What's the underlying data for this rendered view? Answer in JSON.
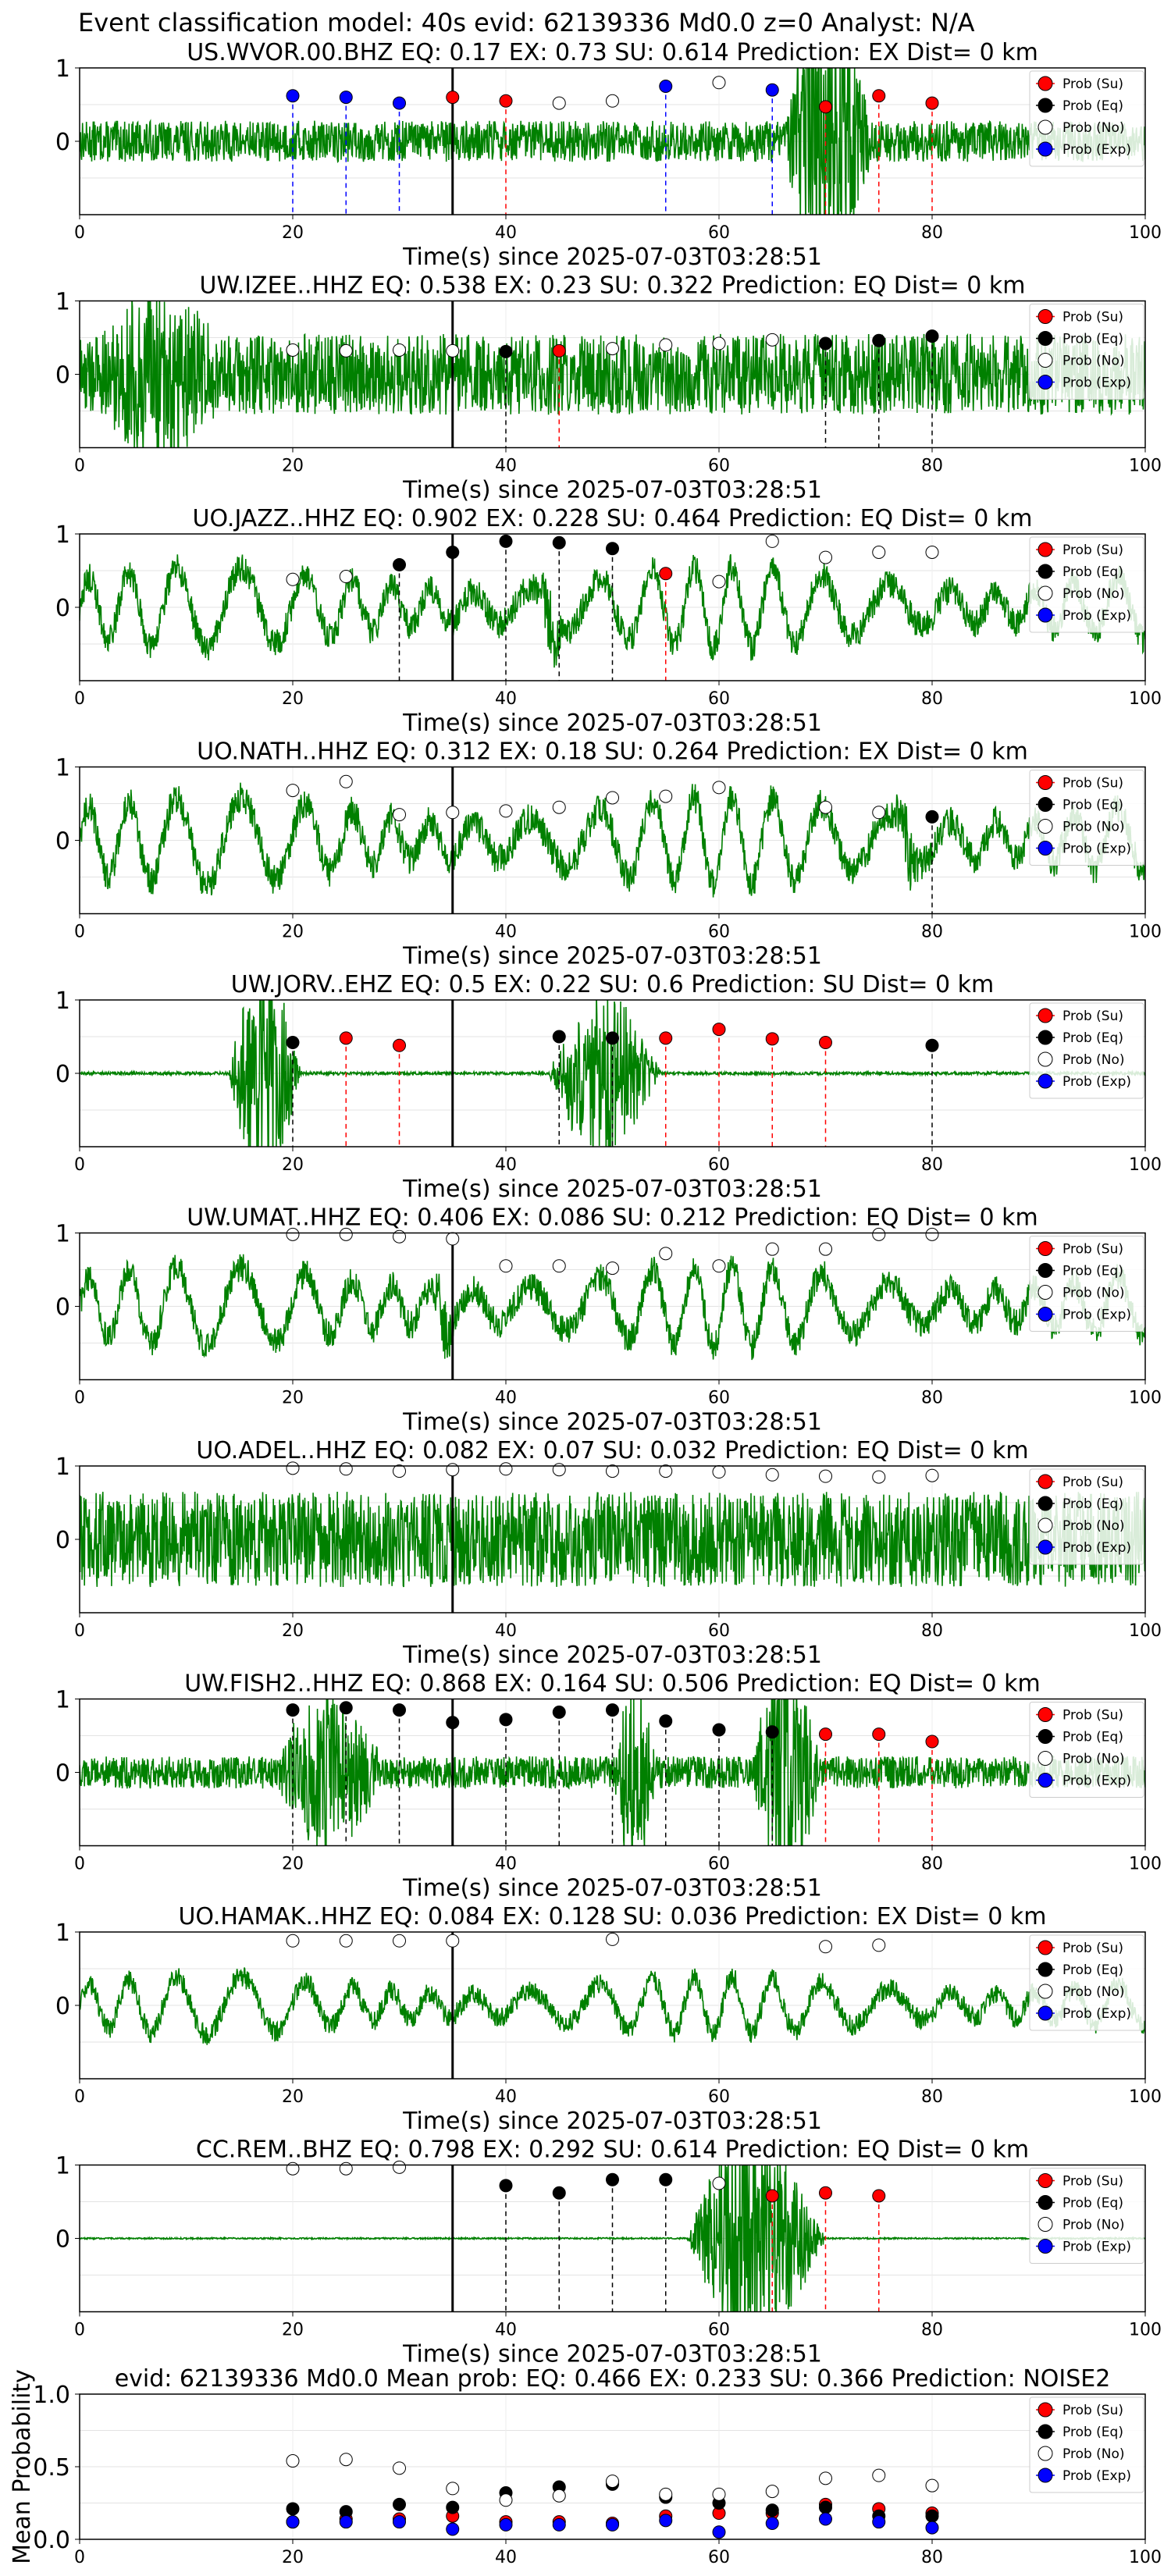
{
  "suptitle": "Event classification model: 40s evid: 62139336 Md0.0 z=0 Analyst: N/A",
  "colors": {
    "waveform": "#008000",
    "su": "#ff0000",
    "eq": "#000000",
    "no": "#ffffff",
    "exp": "#0000ff",
    "origin_line": "#000000"
  },
  "legend": [
    "Prob (Su)",
    "Prob (Eq)",
    "Prob (No)",
    "Prob (Exp)"
  ],
  "xlabel": "Time(s) since 2025-07-03T03:28:51",
  "origin_time_s": 35,
  "chart_data": [
    {
      "type": "line",
      "title": "US.WVOR.00.BHZ   EQ: 0.17  EX: 0.73  SU: 0.614   Prediction: EX    Dist= 0 km",
      "xlim": [
        0,
        100
      ],
      "ylim": [
        -1,
        1
      ],
      "yticks": [
        0,
        1
      ],
      "xticks": [
        0,
        20,
        40,
        60,
        80,
        100
      ],
      "grid": true,
      "legend_position": "right",
      "wave": {
        "style": "noise",
        "amp": 0.28,
        "bursts": [
          [
            66,
            80,
            2.4
          ]
        ]
      },
      "points": [
        {
          "t": 20,
          "cls": "exp",
          "p": 0.62
        },
        {
          "t": 25,
          "cls": "exp",
          "p": 0.6
        },
        {
          "t": 30,
          "cls": "exp",
          "p": 0.52
        },
        {
          "t": 35,
          "cls": "su",
          "p": 0.6
        },
        {
          "t": 40,
          "cls": "su",
          "p": 0.55
        },
        {
          "t": 45,
          "cls": "no",
          "p": 0.52
        },
        {
          "t": 50,
          "cls": "no",
          "p": 0.55
        },
        {
          "t": 55,
          "cls": "exp",
          "p": 0.75
        },
        {
          "t": 60,
          "cls": "no",
          "p": 0.8
        },
        {
          "t": 65,
          "cls": "exp",
          "p": 0.7
        },
        {
          "t": 70,
          "cls": "su",
          "p": 0.47
        },
        {
          "t": 75,
          "cls": "su",
          "p": 0.62
        },
        {
          "t": 80,
          "cls": "su",
          "p": 0.52
        }
      ]
    },
    {
      "type": "line",
      "title": "UW.IZEE..HHZ   EQ: 0.538  EX: 0.23  SU: 0.322   Prediction: EQ    Dist= 0 km",
      "xlim": [
        0,
        100
      ],
      "ylim": [
        -1,
        1
      ],
      "yticks": [
        0,
        1
      ],
      "xticks": [
        0,
        20,
        40,
        60,
        80,
        100
      ],
      "grid": true,
      "legend_position": "right",
      "wave": {
        "style": "noise",
        "amp": 0.55,
        "bursts": [
          [
            0,
            25,
            1.4
          ]
        ]
      },
      "points": [
        {
          "t": 20,
          "cls": "no",
          "p": 0.33
        },
        {
          "t": 25,
          "cls": "no",
          "p": 0.32
        },
        {
          "t": 30,
          "cls": "no",
          "p": 0.33
        },
        {
          "t": 35,
          "cls": "no",
          "p": 0.32
        },
        {
          "t": 40,
          "cls": "eq",
          "p": 0.31
        },
        {
          "t": 45,
          "cls": "su",
          "p": 0.32
        },
        {
          "t": 50,
          "cls": "no",
          "p": 0.35
        },
        {
          "t": 55,
          "cls": "no",
          "p": 0.4
        },
        {
          "t": 60,
          "cls": "no",
          "p": 0.42
        },
        {
          "t": 65,
          "cls": "no",
          "p": 0.47
        },
        {
          "t": 70,
          "cls": "eq",
          "p": 0.42
        },
        {
          "t": 75,
          "cls": "eq",
          "p": 0.46
        },
        {
          "t": 80,
          "cls": "eq",
          "p": 0.52
        }
      ]
    },
    {
      "type": "line",
      "title": "UO.JAZZ..HHZ   EQ: 0.902  EX: 0.228  SU: 0.464   Prediction: EQ    Dist= 0 km",
      "xlim": [
        0,
        100
      ],
      "ylim": [
        -1,
        1
      ],
      "yticks": [
        0,
        1
      ],
      "xticks": [
        0,
        20,
        40,
        60,
        80,
        100
      ],
      "grid": true,
      "legend_position": "right",
      "wave": {
        "style": "wave",
        "amp": 0.55,
        "bursts": [
          [
            43,
            47,
            1.8
          ]
        ]
      },
      "points": [
        {
          "t": 20,
          "cls": "no",
          "p": 0.38
        },
        {
          "t": 25,
          "cls": "no",
          "p": 0.42
        },
        {
          "t": 30,
          "cls": "eq",
          "p": 0.58
        },
        {
          "t": 35,
          "cls": "eq",
          "p": 0.75
        },
        {
          "t": 40,
          "cls": "eq",
          "p": 0.9
        },
        {
          "t": 45,
          "cls": "eq",
          "p": 0.88
        },
        {
          "t": 50,
          "cls": "eq",
          "p": 0.8
        },
        {
          "t": 55,
          "cls": "su",
          "p": 0.46
        },
        {
          "t": 60,
          "cls": "no",
          "p": 0.35
        },
        {
          "t": 65,
          "cls": "no",
          "p": 0.9
        },
        {
          "t": 70,
          "cls": "no",
          "p": 0.68
        },
        {
          "t": 75,
          "cls": "no",
          "p": 0.75
        },
        {
          "t": 80,
          "cls": "no",
          "p": 0.75
        }
      ]
    },
    {
      "type": "line",
      "title": "UO.NATH..HHZ   EQ: 0.312  EX: 0.18  SU: 0.264   Prediction: EX    Dist= 0 km",
      "xlim": [
        0,
        100
      ],
      "ylim": [
        -1,
        1
      ],
      "yticks": [
        0,
        1
      ],
      "xticks": [
        0,
        20,
        40,
        60,
        80,
        100
      ],
      "grid": true,
      "legend_position": "right",
      "wave": {
        "style": "wave",
        "amp": 0.6,
        "bursts": [
          [
            76,
            82,
            1.6
          ]
        ]
      },
      "points": [
        {
          "t": 20,
          "cls": "no",
          "p": 0.68
        },
        {
          "t": 25,
          "cls": "no",
          "p": 0.8
        },
        {
          "t": 30,
          "cls": "no",
          "p": 0.35
        },
        {
          "t": 35,
          "cls": "no",
          "p": 0.38
        },
        {
          "t": 40,
          "cls": "no",
          "p": 0.4
        },
        {
          "t": 45,
          "cls": "no",
          "p": 0.45
        },
        {
          "t": 50,
          "cls": "no",
          "p": 0.58
        },
        {
          "t": 55,
          "cls": "no",
          "p": 0.6
        },
        {
          "t": 60,
          "cls": "no",
          "p": 0.72
        },
        {
          "t": 70,
          "cls": "no",
          "p": 0.45
        },
        {
          "t": 75,
          "cls": "no",
          "p": 0.38
        },
        {
          "t": 80,
          "cls": "eq",
          "p": 0.32
        }
      ]
    },
    {
      "type": "line",
      "title": "UW.JORV..EHZ   EQ: 0.5  EX: 0.22  SU: 0.6    Prediction: SU     Dist= 0 km",
      "xlim": [
        0,
        100
      ],
      "ylim": [
        -1,
        1
      ],
      "yticks": [
        0,
        1
      ],
      "xticks": [
        0,
        20,
        40,
        60,
        80,
        100
      ],
      "grid": true,
      "legend_position": "right",
      "wave": {
        "style": "quiet",
        "amp": 0.02,
        "bursts": [
          [
            14,
            25,
            1.8
          ],
          [
            44,
            61,
            1.4
          ]
        ]
      },
      "points": [
        {
          "t": 20,
          "cls": "eq",
          "p": 0.42
        },
        {
          "t": 25,
          "cls": "su",
          "p": 0.48
        },
        {
          "t": 30,
          "cls": "su",
          "p": 0.38
        },
        {
          "t": 45,
          "cls": "eq",
          "p": 0.5
        },
        {
          "t": 50,
          "cls": "eq",
          "p": 0.48
        },
        {
          "t": 55,
          "cls": "su",
          "p": 0.48
        },
        {
          "t": 60,
          "cls": "su",
          "p": 0.6
        },
        {
          "t": 65,
          "cls": "su",
          "p": 0.47
        },
        {
          "t": 70,
          "cls": "su",
          "p": 0.42
        },
        {
          "t": 80,
          "cls": "eq",
          "p": 0.38
        }
      ]
    },
    {
      "type": "line",
      "title": "UW.UMAT..HHZ   EQ: 0.406  EX: 0.086  SU: 0.212   Prediction: EQ    Dist= 0 km",
      "xlim": [
        0,
        100
      ],
      "ylim": [
        -1,
        1
      ],
      "yticks": [
        0,
        1
      ],
      "xticks": [
        0,
        20,
        40,
        60,
        80,
        100
      ],
      "grid": true,
      "legend_position": "right",
      "wave": {
        "style": "wave",
        "amp": 0.55,
        "bursts": [
          [
            33,
            37,
            1.5
          ]
        ]
      },
      "points": [
        {
          "t": 20,
          "cls": "no",
          "p": 0.98
        },
        {
          "t": 25,
          "cls": "no",
          "p": 0.98
        },
        {
          "t": 30,
          "cls": "no",
          "p": 0.95
        },
        {
          "t": 35,
          "cls": "no",
          "p": 0.92
        },
        {
          "t": 40,
          "cls": "no",
          "p": 0.55
        },
        {
          "t": 45,
          "cls": "no",
          "p": 0.55
        },
        {
          "t": 50,
          "cls": "no",
          "p": 0.52
        },
        {
          "t": 55,
          "cls": "no",
          "p": 0.72
        },
        {
          "t": 60,
          "cls": "no",
          "p": 0.55
        },
        {
          "t": 65,
          "cls": "no",
          "p": 0.78
        },
        {
          "t": 70,
          "cls": "no",
          "p": 0.78
        },
        {
          "t": 75,
          "cls": "no",
          "p": 0.98
        },
        {
          "t": 80,
          "cls": "no",
          "p": 0.98
        }
      ]
    },
    {
      "type": "line",
      "title": "UO.ADEL..HHZ   EQ: 0.082  EX: 0.07  SU: 0.032   Prediction: EQ    Dist= 0 km",
      "xlim": [
        0,
        100
      ],
      "ylim": [
        -1,
        1
      ],
      "yticks": [
        0,
        1
      ],
      "xticks": [
        0,
        20,
        40,
        60,
        80,
        100
      ],
      "grid": true,
      "legend_position": "right",
      "wave": {
        "style": "noise",
        "amp": 0.65,
        "bursts": []
      },
      "points": [
        {
          "t": 20,
          "cls": "no",
          "p": 0.97
        },
        {
          "t": 25,
          "cls": "no",
          "p": 0.96
        },
        {
          "t": 30,
          "cls": "no",
          "p": 0.93
        },
        {
          "t": 35,
          "cls": "no",
          "p": 0.95
        },
        {
          "t": 40,
          "cls": "no",
          "p": 0.96
        },
        {
          "t": 45,
          "cls": "no",
          "p": 0.95
        },
        {
          "t": 50,
          "cls": "no",
          "p": 0.93
        },
        {
          "t": 55,
          "cls": "no",
          "p": 0.93
        },
        {
          "t": 60,
          "cls": "no",
          "p": 0.92
        },
        {
          "t": 65,
          "cls": "no",
          "p": 0.88
        },
        {
          "t": 70,
          "cls": "no",
          "p": 0.86
        },
        {
          "t": 75,
          "cls": "no",
          "p": 0.85
        },
        {
          "t": 80,
          "cls": "no",
          "p": 0.87
        }
      ]
    },
    {
      "type": "line",
      "title": "UW.FISH2..HHZ   EQ: 0.868  EX: 0.164  SU: 0.506   Prediction: EQ    Dist= 0 km",
      "xlim": [
        0,
        100
      ],
      "ylim": [
        -1,
        1
      ],
      "yticks": [
        0,
        1
      ],
      "xticks": [
        0,
        20,
        40,
        60,
        80,
        100
      ],
      "grid": true,
      "legend_position": "right",
      "wave": {
        "style": "noise",
        "amp": 0.22,
        "bursts": [
          [
            18,
            36,
            1.3
          ],
          [
            50,
            57,
            1.6
          ],
          [
            63,
            74,
            2.0
          ]
        ]
      },
      "points": [
        {
          "t": 20,
          "cls": "eq",
          "p": 0.85
        },
        {
          "t": 25,
          "cls": "eq",
          "p": 0.88
        },
        {
          "t": 30,
          "cls": "eq",
          "p": 0.85
        },
        {
          "t": 35,
          "cls": "eq",
          "p": 0.68
        },
        {
          "t": 40,
          "cls": "eq",
          "p": 0.72
        },
        {
          "t": 45,
          "cls": "eq",
          "p": 0.82
        },
        {
          "t": 50,
          "cls": "eq",
          "p": 0.85
        },
        {
          "t": 55,
          "cls": "eq",
          "p": 0.7
        },
        {
          "t": 60,
          "cls": "eq",
          "p": 0.58
        },
        {
          "t": 65,
          "cls": "eq",
          "p": 0.55
        },
        {
          "t": 70,
          "cls": "su",
          "p": 0.52
        },
        {
          "t": 75,
          "cls": "su",
          "p": 0.52
        },
        {
          "t": 80,
          "cls": "su",
          "p": 0.42
        }
      ]
    },
    {
      "type": "line",
      "title": "UO.HAMAK..HHZ   EQ: 0.084  EX: 0.128  SU: 0.036   Prediction: EX    Dist= 0 km",
      "xlim": [
        0,
        100
      ],
      "ylim": [
        -1,
        1
      ],
      "yticks": [
        0,
        1
      ],
      "xticks": [
        0,
        20,
        40,
        60,
        80,
        100
      ],
      "grid": true,
      "legend_position": "right",
      "wave": {
        "style": "wave",
        "amp": 0.4,
        "bursts": []
      },
      "points": [
        {
          "t": 20,
          "cls": "no",
          "p": 0.88
        },
        {
          "t": 25,
          "cls": "no",
          "p": 0.88
        },
        {
          "t": 30,
          "cls": "no",
          "p": 0.88
        },
        {
          "t": 35,
          "cls": "no",
          "p": 0.88
        },
        {
          "t": 50,
          "cls": "no",
          "p": 0.9
        },
        {
          "t": 70,
          "cls": "no",
          "p": 0.8
        },
        {
          "t": 75,
          "cls": "no",
          "p": 0.82
        }
      ]
    },
    {
      "type": "line",
      "title": "CC.REM..BHZ   EQ: 0.798  EX: 0.292  SU: 0.614   Prediction: EQ    Dist= 0 km",
      "xlim": [
        0,
        100
      ],
      "ylim": [
        -1,
        1
      ],
      "yticks": [
        0,
        1
      ],
      "xticks": [
        0,
        20,
        40,
        60,
        80,
        100
      ],
      "grid": true,
      "legend_position": "right",
      "wave": {
        "style": "quiet",
        "amp": 0.01,
        "bursts": [
          [
            57,
            78,
            1.8
          ]
        ]
      },
      "points": [
        {
          "t": 20,
          "cls": "no",
          "p": 0.95
        },
        {
          "t": 25,
          "cls": "no",
          "p": 0.95
        },
        {
          "t": 30,
          "cls": "no",
          "p": 0.97
        },
        {
          "t": 40,
          "cls": "eq",
          "p": 0.72
        },
        {
          "t": 45,
          "cls": "eq",
          "p": 0.62
        },
        {
          "t": 50,
          "cls": "eq",
          "p": 0.8
        },
        {
          "t": 55,
          "cls": "eq",
          "p": 0.8
        },
        {
          "t": 60,
          "cls": "no",
          "p": 0.75
        },
        {
          "t": 65,
          "cls": "su",
          "p": 0.58
        },
        {
          "t": 70,
          "cls": "su",
          "p": 0.62
        },
        {
          "t": 75,
          "cls": "su",
          "p": 0.58
        }
      ]
    },
    {
      "type": "scatter",
      "title": "evid: 62139336  Md0.0   Mean prob:   EQ: 0.466  EX: 0.233  SU: 0.366   Prediction: NOISE2",
      "ylabel": "Mean Probability",
      "xlim": [
        0,
        100
      ],
      "ylim": [
        0,
        1
      ],
      "yticks": [
        0,
        0.5,
        1
      ],
      "ytick_labels": [
        "0.0",
        "0.5",
        "1.0"
      ],
      "xticks": [
        0,
        20,
        40,
        60,
        80,
        100
      ],
      "grid": true,
      "legend_position": "right",
      "x": [
        20,
        25,
        30,
        35,
        40,
        45,
        50,
        55,
        60,
        65,
        70,
        75,
        80
      ],
      "series": [
        {
          "name": "Prob (Su)",
          "cls": "su",
          "values": [
            0.12,
            0.14,
            0.14,
            0.16,
            0.12,
            0.12,
            0.11,
            0.16,
            0.18,
            0.18,
            0.24,
            0.21,
            0.18
          ]
        },
        {
          "name": "Prob (Eq)",
          "cls": "eq",
          "values": [
            0.21,
            0.19,
            0.24,
            0.22,
            0.32,
            0.36,
            0.38,
            0.29,
            0.25,
            0.2,
            0.22,
            0.16,
            0.16
          ]
        },
        {
          "name": "Prob (No)",
          "cls": "no",
          "values": [
            0.54,
            0.55,
            0.49,
            0.35,
            0.27,
            0.3,
            0.4,
            0.31,
            0.31,
            0.33,
            0.42,
            0.44,
            0.37
          ]
        },
        {
          "name": "Prob (Exp)",
          "cls": "exp",
          "values": [
            0.12,
            0.12,
            0.12,
            0.07,
            0.1,
            0.1,
            0.1,
            0.13,
            0.05,
            0.11,
            0.14,
            0.12,
            0.08
          ]
        }
      ]
    }
  ]
}
